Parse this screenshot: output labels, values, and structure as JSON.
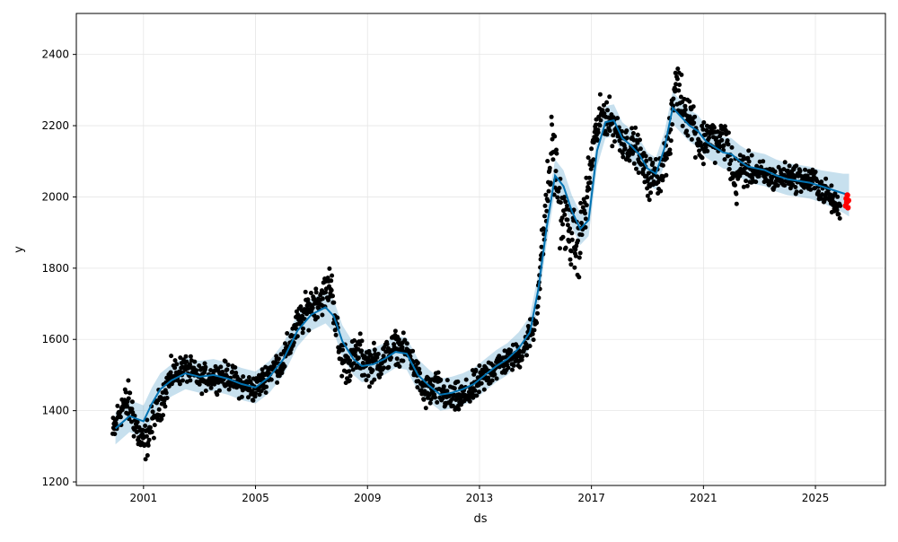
{
  "chart_data": {
    "type": "scatter",
    "title": "",
    "xlabel": "ds",
    "ylabel": "y",
    "xlim": [
      1998.6,
      2027.5
    ],
    "ylim": [
      1190,
      2515
    ],
    "grid": true,
    "x_ticks": [
      2001,
      2005,
      2009,
      2013,
      2017,
      2021,
      2025
    ],
    "y_ticks": [
      1200,
      1400,
      1600,
      1800,
      2000,
      2200,
      2400
    ],
    "colors": {
      "observed": "#000000",
      "forecast_line": "#0072b2",
      "uncertainty_band": "#0072b2",
      "highlight": "#ff0000"
    },
    "series": [
      {
        "role": "forecast",
        "x": [
          2000.0,
          2000.5,
          2001.0,
          2001.3,
          2001.6,
          2002.0,
          2002.5,
          2003.0,
          2003.5,
          2004.0,
          2004.5,
          2005.0,
          2005.5,
          2006.0,
          2006.5,
          2007.0,
          2007.5,
          2007.8,
          2008.1,
          2008.5,
          2008.8,
          2009.2,
          2009.6,
          2010.0,
          2010.4,
          2010.8,
          2011.2,
          2011.6,
          2012.0,
          2012.4,
          2012.8,
          2013.2,
          2013.6,
          2014.0,
          2014.4,
          2014.8,
          2015.1,
          2015.4,
          2015.7,
          2016.0,
          2016.3,
          2016.6,
          2016.9,
          2017.2,
          2017.5,
          2017.8,
          2018.1,
          2018.4,
          2018.7,
          2019.0,
          2019.3,
          2019.6,
          2019.9,
          2020.2,
          2020.5,
          2020.8,
          2021.1,
          2021.4,
          2021.7,
          2022.0,
          2022.3,
          2022.6,
          2022.9,
          2023.2,
          2023.6,
          2024.0,
          2024.4,
          2024.8,
          2025.2,
          2025.6,
          2026.0,
          2026.2
        ],
        "y": [
          1350,
          1385,
          1370,
          1420,
          1460,
          1485,
          1505,
          1495,
          1500,
          1490,
          1475,
          1465,
          1495,
          1545,
          1625,
          1670,
          1690,
          1665,
          1595,
          1545,
          1525,
          1530,
          1545,
          1565,
          1560,
          1500,
          1470,
          1445,
          1450,
          1460,
          1475,
          1500,
          1525,
          1545,
          1575,
          1620,
          1740,
          1915,
          2060,
          2030,
          1960,
          1910,
          1935,
          2130,
          2210,
          2215,
          2165,
          2145,
          2120,
          2080,
          2065,
          2135,
          2250,
          2225,
          2200,
          2185,
          2155,
          2140,
          2125,
          2120,
          2100,
          2085,
          2080,
          2075,
          2060,
          2050,
          2045,
          2040,
          2030,
          2020,
          2010,
          2005
        ],
        "lower": [
          1305,
          1340,
          1325,
          1375,
          1415,
          1440,
          1460,
          1450,
          1455,
          1445,
          1430,
          1420,
          1450,
          1500,
          1580,
          1625,
          1645,
          1620,
          1550,
          1500,
          1480,
          1485,
          1500,
          1520,
          1515,
          1455,
          1425,
          1400,
          1405,
          1415,
          1430,
          1455,
          1480,
          1500,
          1530,
          1575,
          1695,
          1870,
          2015,
          1985,
          1915,
          1865,
          1890,
          2085,
          2165,
          2170,
          2120,
          2100,
          2075,
          2035,
          2020,
          2090,
          2205,
          2180,
          2155,
          2140,
          2110,
          2095,
          2080,
          2075,
          2055,
          2040,
          2035,
          2030,
          2015,
          2005,
          2000,
          1995,
          1985,
          1970,
          1955,
          1945
        ],
        "upper": [
          1395,
          1430,
          1415,
          1465,
          1505,
          1530,
          1550,
          1540,
          1545,
          1535,
          1520,
          1510,
          1540,
          1590,
          1670,
          1715,
          1735,
          1710,
          1640,
          1590,
          1570,
          1575,
          1590,
          1610,
          1605,
          1545,
          1515,
          1490,
          1495,
          1505,
          1520,
          1545,
          1570,
          1590,
          1620,
          1665,
          1785,
          1960,
          2105,
          2075,
          2005,
          1955,
          1980,
          2175,
          2255,
          2260,
          2210,
          2190,
          2165,
          2125,
          2110,
          2180,
          2295,
          2270,
          2245,
          2230,
          2200,
          2185,
          2170,
          2165,
          2145,
          2130,
          2125,
          2120,
          2105,
          2095,
          2090,
          2085,
          2075,
          2070,
          2065,
          2065
        ]
      },
      {
        "role": "observed_anchors",
        "x": [
          1999.9,
          2000.2,
          2000.5,
          2000.8,
          2001.0,
          2001.5,
          2002.0,
          2002.5,
          2003.0,
          2003.5,
          2004.0,
          2004.5,
          2005.0,
          2005.5,
          2006.0,
          2006.5,
          2007.0,
          2007.4,
          2007.7,
          2008.0,
          2008.3,
          2008.7,
          2009.0,
          2009.5,
          2010.0,
          2010.5,
          2011.0,
          2011.5,
          2012.0,
          2012.5,
          2013.0,
          2013.5,
          2014.0,
          2014.5,
          2015.0,
          2015.3,
          2015.6,
          2015.9,
          2016.2,
          2016.5,
          2016.8,
          2017.1,
          2017.4,
          2017.8,
          2018.2,
          2018.6,
          2019.0,
          2019.4,
          2019.8,
          2020.0,
          2020.3,
          2020.6,
          2020.9,
          2021.2,
          2021.5,
          2021.8,
          2022.1,
          2022.4,
          2022.8,
          2023.2,
          2023.6,
          2024.0,
          2024.5,
          2025.0,
          2025.5,
          2025.9
        ],
        "y": [
          1330,
          1410,
          1420,
          1340,
          1300,
          1400,
          1500,
          1520,
          1490,
          1495,
          1500,
          1470,
          1460,
          1510,
          1540,
          1640,
          1700,
          1720,
          1760,
          1560,
          1530,
          1560,
          1530,
          1540,
          1580,
          1560,
          1450,
          1460,
          1430,
          1440,
          1480,
          1520,
          1540,
          1560,
          1650,
          1900,
          2150,
          1960,
          1900,
          1850,
          1980,
          2160,
          2240,
          2200,
          2150,
          2140,
          2050,
          2060,
          2150,
          2330,
          2250,
          2220,
          2140,
          2180,
          2150,
          2170,
          2040,
          2080,
          2070,
          2060,
          2050,
          2060,
          2050,
          2040,
          2000,
          1960
        ],
        "spread": [
          45,
          45,
          50,
          45,
          45,
          40,
          35,
          30,
          30,
          30,
          30,
          30,
          30,
          30,
          35,
          40,
          40,
          40,
          45,
          50,
          45,
          45,
          45,
          40,
          35,
          30,
          40,
          40,
          35,
          35,
          35,
          35,
          30,
          30,
          40,
          60,
          90,
          80,
          70,
          70,
          70,
          50,
          45,
          45,
          40,
          40,
          45,
          45,
          50,
          60,
          55,
          50,
          55,
          45,
          40,
          50,
          60,
          45,
          30,
          30,
          30,
          30,
          30,
          30,
          30,
          25
        ]
      },
      {
        "role": "highlight",
        "x": [
          2026.08,
          2026.1,
          2026.12,
          2026.14,
          2026.16,
          2026.18
        ],
        "y": [
          1975,
          1995,
          1985,
          2005,
          1970,
          1990
        ]
      }
    ]
  }
}
